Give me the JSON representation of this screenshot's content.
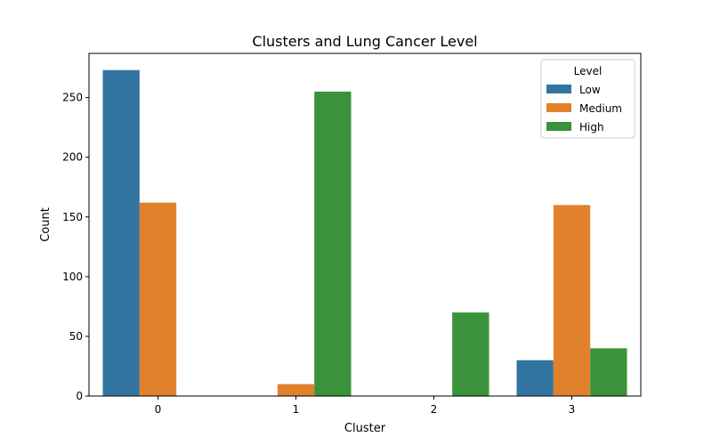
{
  "chart_data": {
    "type": "bar",
    "title": "Clusters and Lung Cancer Level",
    "xlabel": "Cluster",
    "ylabel": "Count",
    "categories": [
      "0",
      "1",
      "2",
      "3"
    ],
    "yticks": [
      0,
      50,
      100,
      150,
      200,
      250
    ],
    "ylim": [
      0,
      287
    ],
    "grid": false,
    "legend": {
      "title": "Level",
      "position": "top-right"
    },
    "series": [
      {
        "name": "Low",
        "color": "#3274a1",
        "values": [
          273,
          0,
          0,
          30
        ]
      },
      {
        "name": "Medium",
        "color": "#e1812c",
        "values": [
          162,
          10,
          0,
          160
        ]
      },
      {
        "name": "High",
        "color": "#3a923a",
        "values": [
          0,
          255,
          70,
          40
        ]
      }
    ]
  }
}
